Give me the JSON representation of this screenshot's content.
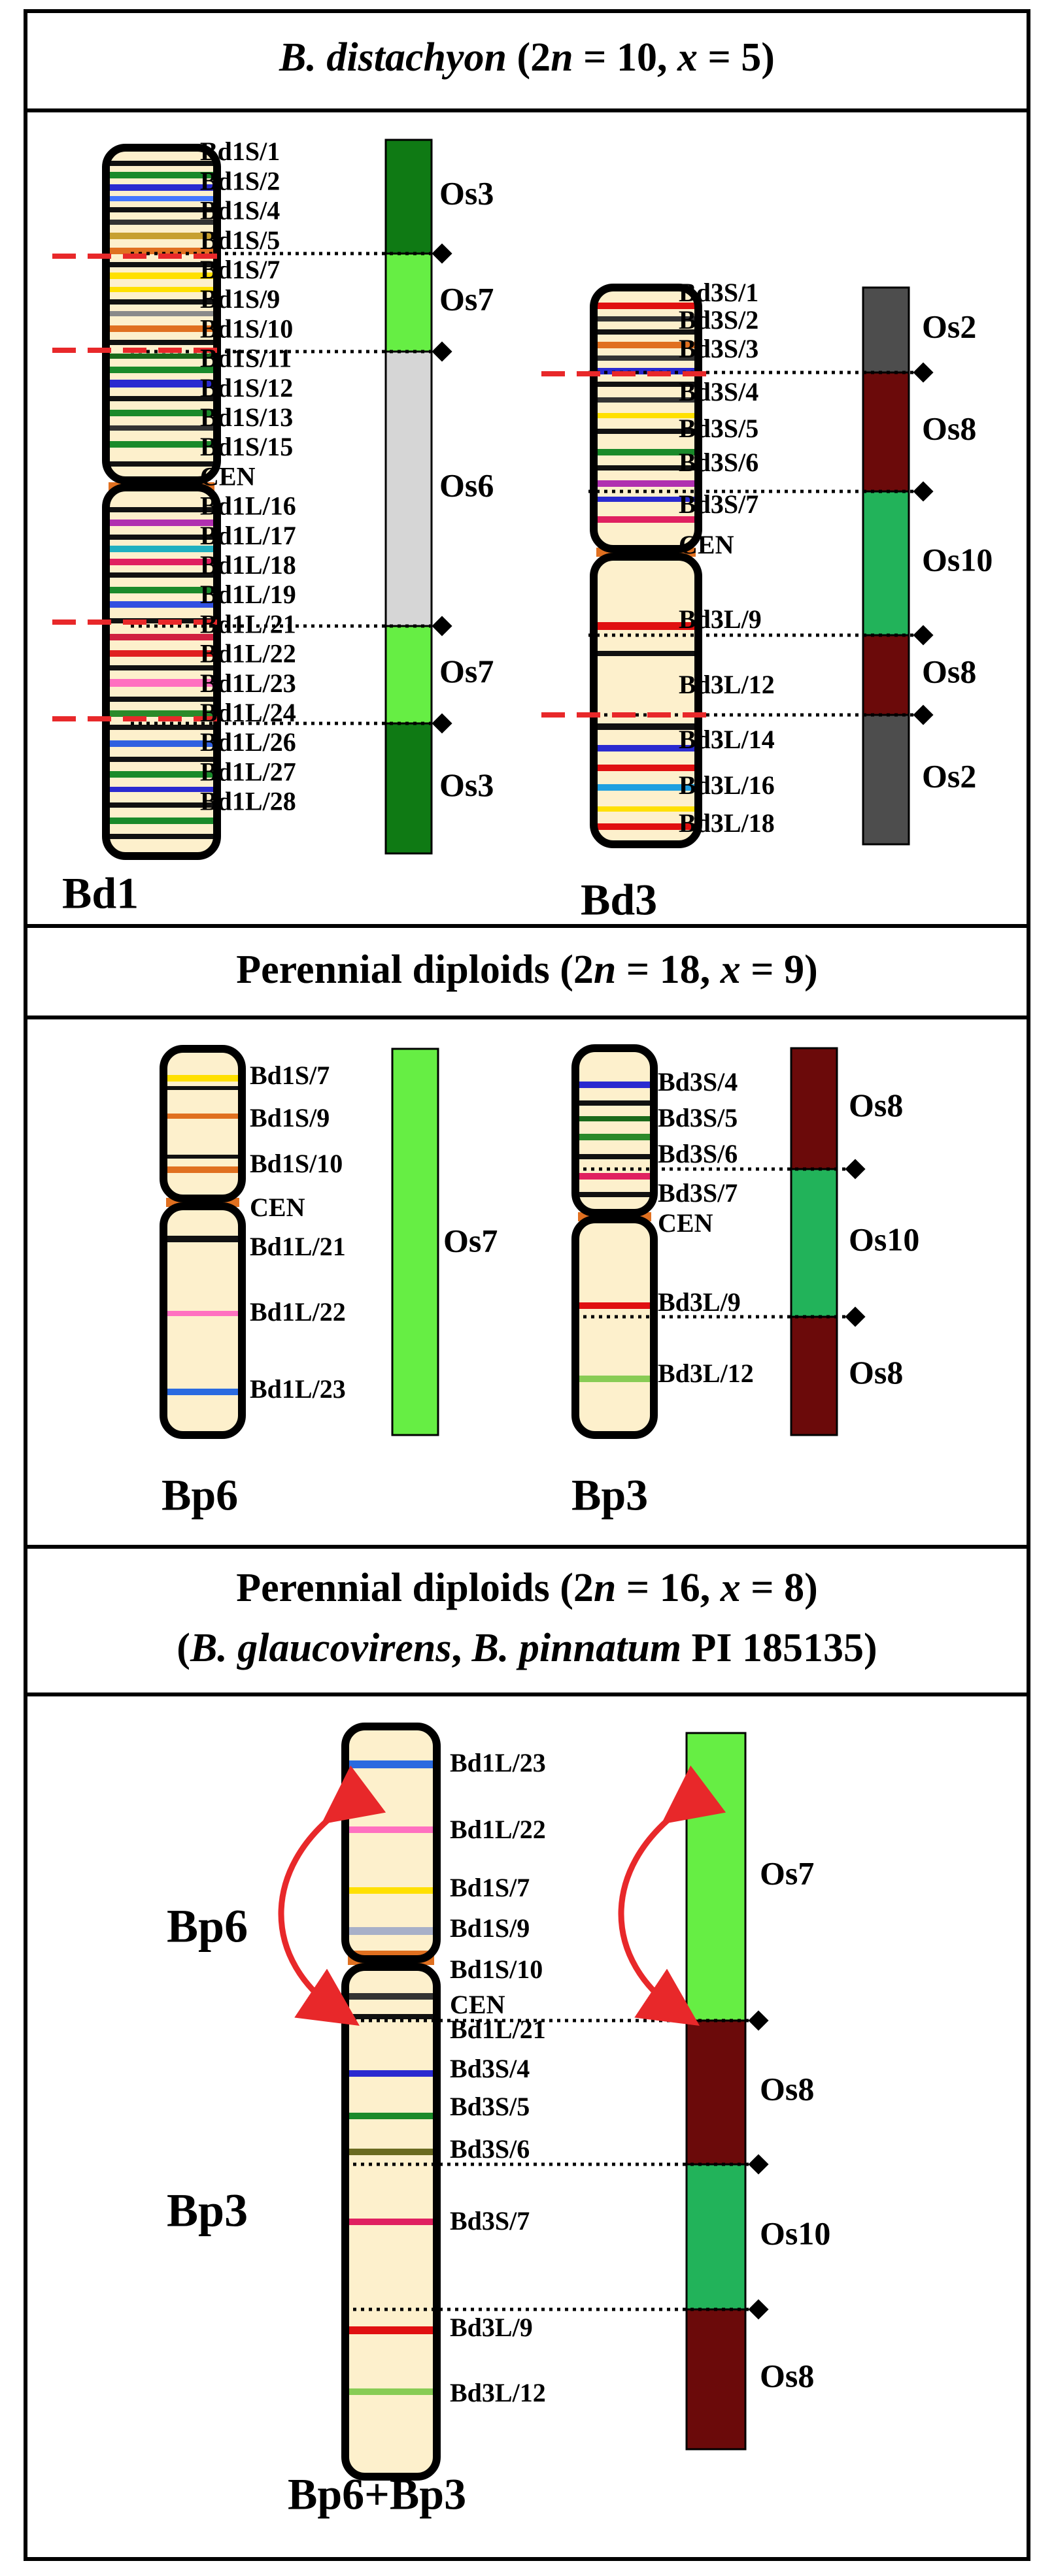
{
  "colors": {
    "chromosome_fill": "#fdf0cc",
    "outline": "#000000",
    "cut_line": "#e8282a",
    "arrow": "#e8282a",
    "os3": "#0f7a14",
    "os7": "#66ee44",
    "os6": "#d6d6d6",
    "os2": "#4d4d4d",
    "os8": "#6b0a0a",
    "os10": "#22b35a"
  },
  "panel1": {
    "title": {
      "species": "B. distachyon",
      "count_open": " (2",
      "n": "n",
      "count_mid": " = 10, ",
      "x": "x",
      "count_close": " = 5)"
    },
    "bd1": {
      "name": "Bd1",
      "labels": [
        "Bd1S/1",
        "Bd1S/2",
        "Bd1S/4",
        "Bd1S/5",
        "Bd1S/7",
        "Bd1S/9",
        "Bd1S/10",
        "Bd1S/11",
        "Bd1S/12",
        "Bd1S/13",
        "Bd1S/15",
        "CEN",
        "Bd1L/16",
        "Bd1L/17",
        "Bd1L/18",
        "Bd1L/19",
        "Bd1L/21",
        "Bd1L/22",
        "Bd1L/23",
        "Bd1L/24",
        "Bd1L/26",
        "Bd1L/27",
        "Bd1L/28"
      ],
      "segments": [
        {
          "label": "Os3",
          "color": "os3"
        },
        {
          "label": "Os7",
          "color": "os7"
        },
        {
          "label": "Os6",
          "color": "os6"
        },
        {
          "label": "Os7",
          "color": "os7"
        },
        {
          "label": "Os3",
          "color": "os3"
        }
      ]
    },
    "bd3": {
      "name": "Bd3",
      "labels": [
        "Bd3S/1",
        "Bd3S/2",
        "Bd3S/3",
        "Bd3S/4",
        "Bd3S/5",
        "Bd3S/6",
        "Bd3S/7",
        "CEN",
        "Bd3L/9",
        "Bd3L/12",
        "Bd3L/14",
        "Bd3L/16",
        "Bd3L/18"
      ],
      "segments": [
        {
          "label": "Os2",
          "color": "os2"
        },
        {
          "label": "Os8",
          "color": "os8"
        },
        {
          "label": "Os10",
          "color": "os10"
        },
        {
          "label": "Os8",
          "color": "os8"
        },
        {
          "label": "Os2",
          "color": "os2"
        }
      ]
    }
  },
  "panel2": {
    "title": {
      "text": "Perennial diploids",
      "count_open": " (2",
      "n": "n",
      "count_mid": " = 18, ",
      "x": "x",
      "count_close": " = 9)"
    },
    "bp6": {
      "name": "Bp6",
      "labels": [
        "Bd1S/7",
        "Bd1S/9",
        "Bd1S/10",
        "CEN",
        "Bd1L/21",
        "Bd1L/22",
        "Bd1L/23"
      ],
      "segments": [
        {
          "label": "Os7",
          "color": "os7"
        }
      ]
    },
    "bp3": {
      "name": "Bp3",
      "labels": [
        "Bd3S/4",
        "Bd3S/5",
        "Bd3S/6",
        "Bd3S/7",
        "CEN",
        "Bd3L/9",
        "Bd3L/12"
      ],
      "segments": [
        {
          "label": "Os8",
          "color": "os8"
        },
        {
          "label": "Os10",
          "color": "os10"
        },
        {
          "label": "Os8",
          "color": "os8"
        }
      ]
    }
  },
  "panel3": {
    "title": {
      "text": "Perennial diploids",
      "count_open": " (2",
      "n": "n",
      "count_mid": " = 16, ",
      "x": "x",
      "count_close": " = 8)",
      "line2_open": "(",
      "species1": "B. glaucovirens",
      "comma": ", ",
      "species2": "B. pinnatum",
      "line2_close": " PI 185135)"
    },
    "fused": {
      "name": "Bp6+Bp3",
      "part_top": "Bp6",
      "part_bottom": "Bp3",
      "labels": [
        "Bd1L/23",
        "Bd1L/22",
        "Bd1S/7",
        "Bd1S/9",
        "Bd1S/10",
        "CEN",
        "Bd1L/21",
        "Bd3S/4",
        "Bd3S/5",
        "Bd3S/6",
        "Bd3S/7",
        "Bd3L/9",
        "Bd3L/12"
      ],
      "segments": [
        {
          "label": "Os7",
          "color": "os7"
        },
        {
          "label": "Os8",
          "color": "os8"
        },
        {
          "label": "Os10",
          "color": "os10"
        },
        {
          "label": "Os8",
          "color": "os8"
        }
      ]
    }
  }
}
